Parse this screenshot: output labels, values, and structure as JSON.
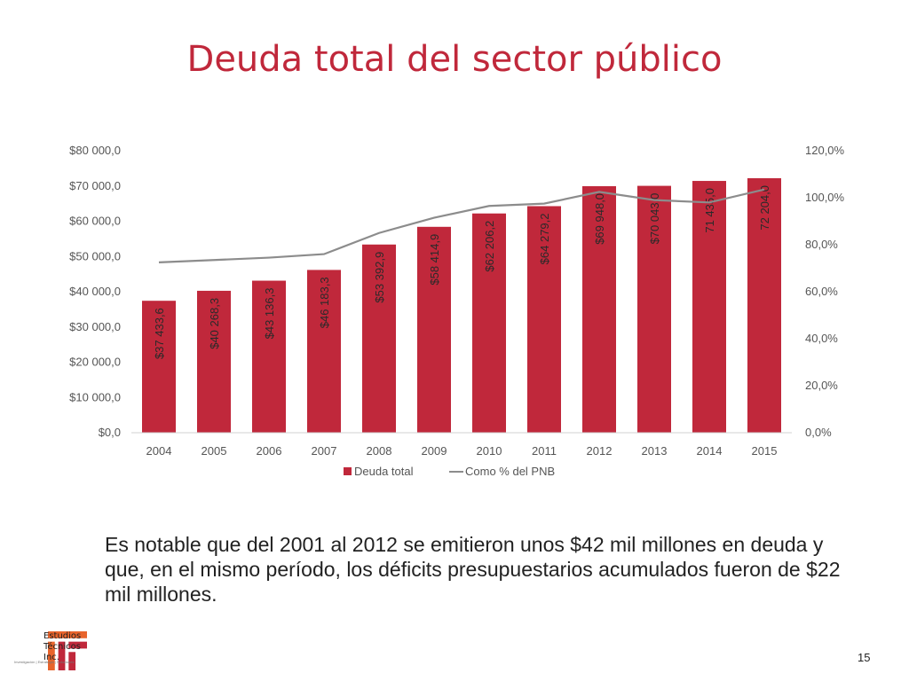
{
  "slide": {
    "title": "Deuda total del sector público",
    "body": "Es notable que del 2001 al 2012 se emitieron unos $42 mil millones en deuda y que, en el mismo período, los déficits presupuestarios acumulados fueron de $22 mil millones.",
    "page_number": "15",
    "logo": {
      "lines": [
        "Estudios",
        "Técnicos",
        "Inc."
      ],
      "tagline": "Investigación | Estrategia | Soluciones"
    }
  },
  "chart_data": {
    "type": "bar",
    "categories": [
      "2004",
      "2005",
      "2006",
      "2007",
      "2008",
      "2009",
      "2010",
      "2011",
      "2012",
      "2013",
      "2014",
      "2015"
    ],
    "series": [
      {
        "name": "Deuda total",
        "type": "bar",
        "axis": "left",
        "color": "#c0283b",
        "values": [
          37433.6,
          40268.3,
          43136.3,
          46183.3,
          53392.9,
          58414.9,
          62206.2,
          64279.2,
          69948.0,
          70043.0,
          71435.0,
          72204.0
        ],
        "labels": [
          "$37 433,6",
          "$40 268,3",
          "$43 136,3",
          "$46 183,3",
          "$53 392,9",
          "$58 414,9",
          "$62 206,2",
          "$64 279,2",
          "$69 948,0",
          "$70 043,0",
          "71 435,0",
          "72 204,0"
        ]
      },
      {
        "name": "Como % del PNB",
        "type": "line",
        "axis": "right",
        "color": "#8c8c8c",
        "values": [
          72.5,
          73.5,
          74.5,
          76.0,
          85.0,
          91.5,
          96.5,
          97.5,
          102.5,
          99.0,
          98.0,
          103.5
        ]
      }
    ],
    "y_left": {
      "min": 0,
      "max": 80000,
      "ticks": [
        "$0,0",
        "$10 000,0",
        "$20 000,0",
        "$30 000,0",
        "$40 000,0",
        "$50 000,0",
        "$60 000,0",
        "$70 000,0",
        "$80 000,0"
      ]
    },
    "y_right": {
      "min": 0,
      "max": 120,
      "ticks": [
        "0,0%",
        "20,0%",
        "40,0%",
        "60,0%",
        "80,0%",
        "100,0%",
        "120,0%"
      ]
    },
    "legend": {
      "position": "bottom",
      "entries": [
        "Deuda total",
        "Como % del PNB"
      ]
    },
    "grid": false
  }
}
